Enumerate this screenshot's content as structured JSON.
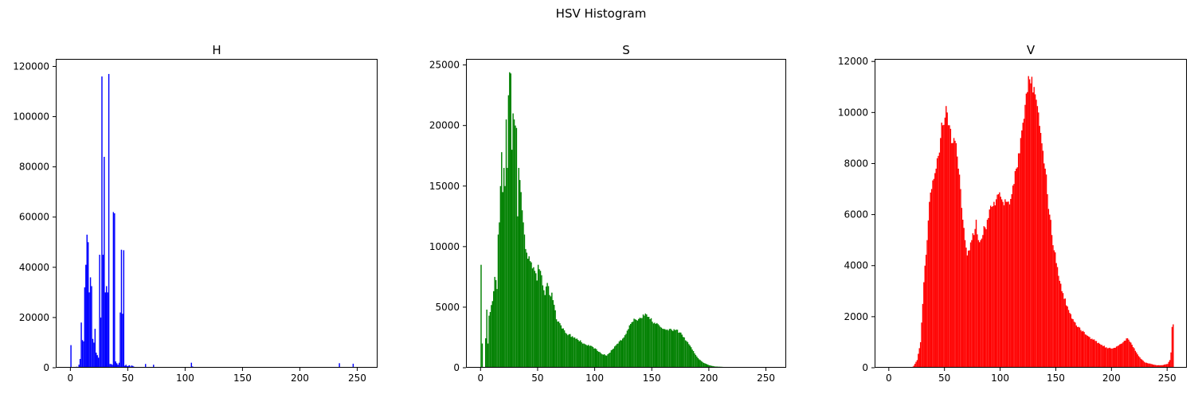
{
  "figure_title": "HSV Histogram",
  "chart_data": [
    {
      "type": "bar",
      "title": "H",
      "color": "#0000ff",
      "xlabel": "",
      "ylabel": "",
      "xlim": [
        -12.75,
        267.75
      ],
      "ylim": [
        0,
        123000
      ],
      "xticks": [
        "0",
        "50",
        "100",
        "150",
        "200",
        "250"
      ],
      "yticks": [
        "0",
        "20000",
        "40000",
        "60000",
        "80000",
        "100000",
        "120000"
      ],
      "bins": [
        0,
        5,
        7,
        8,
        9,
        10,
        11,
        12,
        13,
        14,
        15,
        16,
        17,
        18,
        19,
        20,
        21,
        22,
        23,
        24,
        25,
        26,
        27,
        28,
        29,
        30,
        31,
        32,
        33,
        34,
        35,
        36,
        37,
        38,
        39,
        40,
        41,
        42,
        43,
        44,
        45,
        46,
        47,
        48,
        49,
        50,
        51,
        52,
        53,
        54,
        55,
        56,
        57,
        58,
        59,
        60,
        61,
        62,
        65,
        70,
        72,
        105,
        106,
        234,
        246
      ],
      "values": [
        9000,
        400,
        1200,
        3500,
        18000,
        11000,
        10500,
        32000,
        41000,
        53000,
        50000,
        30000,
        36000,
        32500,
        11500,
        10000,
        15500,
        6000,
        5000,
        4000,
        45000,
        20000,
        116000,
        45000,
        84000,
        30000,
        32500,
        30000,
        117000,
        1500,
        1500,
        1200,
        62000,
        61500,
        2500,
        1800,
        1200,
        2000,
        22000,
        47000,
        21500,
        46800,
        800,
        1200,
        600,
        800,
        1000,
        500,
        900,
        700,
        400,
        300,
        300,
        200,
        200,
        300,
        200,
        200,
        1500,
        300,
        1200,
        2000,
        500,
        1800,
        1600
      ]
    },
    {
      "type": "bar",
      "title": "S",
      "color": "#008000",
      "xlabel": "",
      "ylabel": "",
      "xlim": [
        -12.75,
        267.75
      ],
      "ylim": [
        0,
        25500
      ],
      "xticks": [
        "0",
        "50",
        "100",
        "150",
        "200",
        "250"
      ],
      "yticks": [
        "0",
        "5000",
        "10000",
        "15000",
        "20000",
        "25000"
      ],
      "anchors_x": [
        0,
        1,
        2,
        3,
        5,
        6,
        7,
        8,
        10,
        12,
        14,
        15,
        16,
        17,
        18,
        19,
        20,
        21,
        22,
        23,
        24,
        25,
        26,
        27,
        28,
        29,
        30,
        31,
        32,
        33,
        34,
        35,
        36,
        37,
        38,
        39,
        40,
        41,
        42,
        43,
        44,
        45,
        46,
        47,
        48,
        49,
        50,
        52,
        54,
        56,
        58,
        60,
        62,
        64,
        66,
        70,
        75,
        80,
        85,
        90,
        95,
        100,
        105,
        110,
        115,
        120,
        125,
        130,
        135,
        140,
        143,
        145,
        147,
        150,
        155,
        160,
        165,
        170,
        175,
        180,
        185,
        190,
        195,
        200,
        205,
        210,
        220,
        230,
        255
      ],
      "anchors_y": [
        8500,
        2000,
        0,
        0,
        4800,
        2000,
        4300,
        4600,
        5500,
        7500,
        6500,
        11000,
        12000,
        15000,
        17800,
        14500,
        16500,
        15000,
        20500,
        16500,
        22500,
        24400,
        24300,
        18000,
        21000,
        20500,
        20000,
        19800,
        12500,
        16500,
        15500,
        14500,
        13000,
        12000,
        11000,
        9800,
        9500,
        9000,
        9200,
        8800,
        8700,
        8200,
        8300,
        8000,
        7800,
        7200,
        8500,
        8000,
        6800,
        6000,
        7000,
        6000,
        6200,
        5200,
        4000,
        3500,
        2800,
        2600,
        2300,
        2000,
        1800,
        1600,
        1200,
        1000,
        1500,
        2000,
        2500,
        3500,
        4000,
        4100,
        4300,
        4400,
        4200,
        3800,
        3600,
        3200,
        3200,
        3100,
        2900,
        2200,
        1500,
        800,
        400,
        200,
        100,
        80,
        30,
        10,
        0
      ]
    },
    {
      "type": "bar",
      "title": "V",
      "color": "#ff0000",
      "xlabel": "",
      "ylabel": "",
      "xlim": [
        -12.75,
        267.75
      ],
      "ylim": [
        0,
        12100
      ],
      "xticks": [
        "0",
        "50",
        "100",
        "150",
        "200",
        "250"
      ],
      "yticks": [
        "0",
        "2000",
        "4000",
        "6000",
        "8000",
        "10000",
        "12000"
      ],
      "anchors_x": [
        0,
        20,
        22,
        25,
        28,
        30,
        32,
        34,
        36,
        38,
        40,
        42,
        44,
        46,
        48,
        50,
        52,
        54,
        56,
        58,
        60,
        62,
        64,
        66,
        68,
        70,
        72,
        74,
        76,
        78,
        80,
        82,
        84,
        86,
        88,
        90,
        92,
        94,
        96,
        98,
        100,
        102,
        104,
        106,
        108,
        110,
        112,
        114,
        116,
        118,
        120,
        122,
        124,
        126,
        128,
        130,
        132,
        134,
        136,
        138,
        140,
        142,
        144,
        146,
        148,
        150,
        152,
        155,
        160,
        165,
        170,
        175,
        180,
        185,
        190,
        195,
        200,
        205,
        210,
        213,
        215,
        218,
        222,
        226,
        230,
        235,
        240,
        245,
        250,
        252,
        253,
        254,
        255
      ],
      "anchors_y": [
        0,
        0,
        80,
        300,
        1000,
        2500,
        4000,
        5000,
        6500,
        7000,
        7400,
        7800,
        8300,
        9000,
        9500,
        9800,
        10000,
        9500,
        8800,
        9000,
        8800,
        7800,
        7000,
        5800,
        5000,
        4400,
        4600,
        5000,
        5200,
        5800,
        5000,
        5000,
        5200,
        5500,
        5800,
        6200,
        6300,
        6500,
        6600,
        6800,
        6700,
        6500,
        6600,
        6500,
        6400,
        6800,
        7200,
        7800,
        8400,
        9000,
        9600,
        10300,
        10800,
        11300,
        11400,
        11000,
        10500,
        10000,
        9200,
        8500,
        7800,
        6800,
        6000,
        5200,
        4600,
        4100,
        3600,
        3000,
        2400,
        1900,
        1600,
        1400,
        1200,
        1050,
        900,
        800,
        750,
        850,
        1000,
        1150,
        1100,
        900,
        600,
        350,
        200,
        150,
        100,
        100,
        150,
        300,
        600,
        1600,
        1700
      ]
    }
  ]
}
